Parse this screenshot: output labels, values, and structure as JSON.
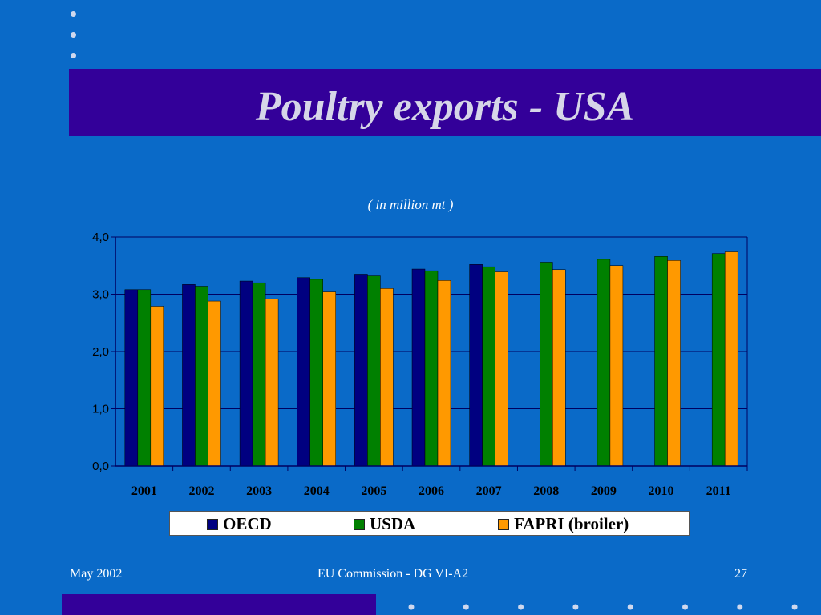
{
  "slide": {
    "title": "Poultry exports - USA",
    "subtitle": "( in million mt )",
    "footer_left": "May 2002",
    "footer_center": "EU Commission - DG VI-A2",
    "footer_right": "27"
  },
  "colors": {
    "background": "#0a6ac8",
    "title_band": "#330099",
    "oecd": "#000080",
    "usda": "#008000",
    "fapri": "#ff9900"
  },
  "chart_data": {
    "type": "bar",
    "title": "",
    "xlabel": "",
    "ylabel": "",
    "ylim": [
      0,
      4
    ],
    "yticks": [
      "0,0",
      "1,0",
      "2,0",
      "3,0",
      "4,0"
    ],
    "grid": true,
    "legend_position": "bottom",
    "categories": [
      "2001",
      "2002",
      "2003",
      "2004",
      "2005",
      "2006",
      "2007",
      "2008",
      "2009",
      "2010",
      "2011"
    ],
    "series": [
      {
        "name": "OECD",
        "color": "#000080",
        "values": [
          3.08,
          3.17,
          3.23,
          3.29,
          3.35,
          3.44,
          3.52,
          null,
          null,
          null,
          null
        ]
      },
      {
        "name": "USDA",
        "color": "#008000",
        "values": [
          3.08,
          3.14,
          3.2,
          3.26,
          3.32,
          3.41,
          3.48,
          3.56,
          3.61,
          3.66,
          3.71
        ]
      },
      {
        "name": "FAPRI (broiler)",
        "color": "#ff9900",
        "values": [
          2.79,
          2.88,
          2.92,
          3.04,
          3.1,
          3.24,
          3.39,
          3.43,
          3.5,
          3.59,
          3.74
        ]
      }
    ]
  }
}
